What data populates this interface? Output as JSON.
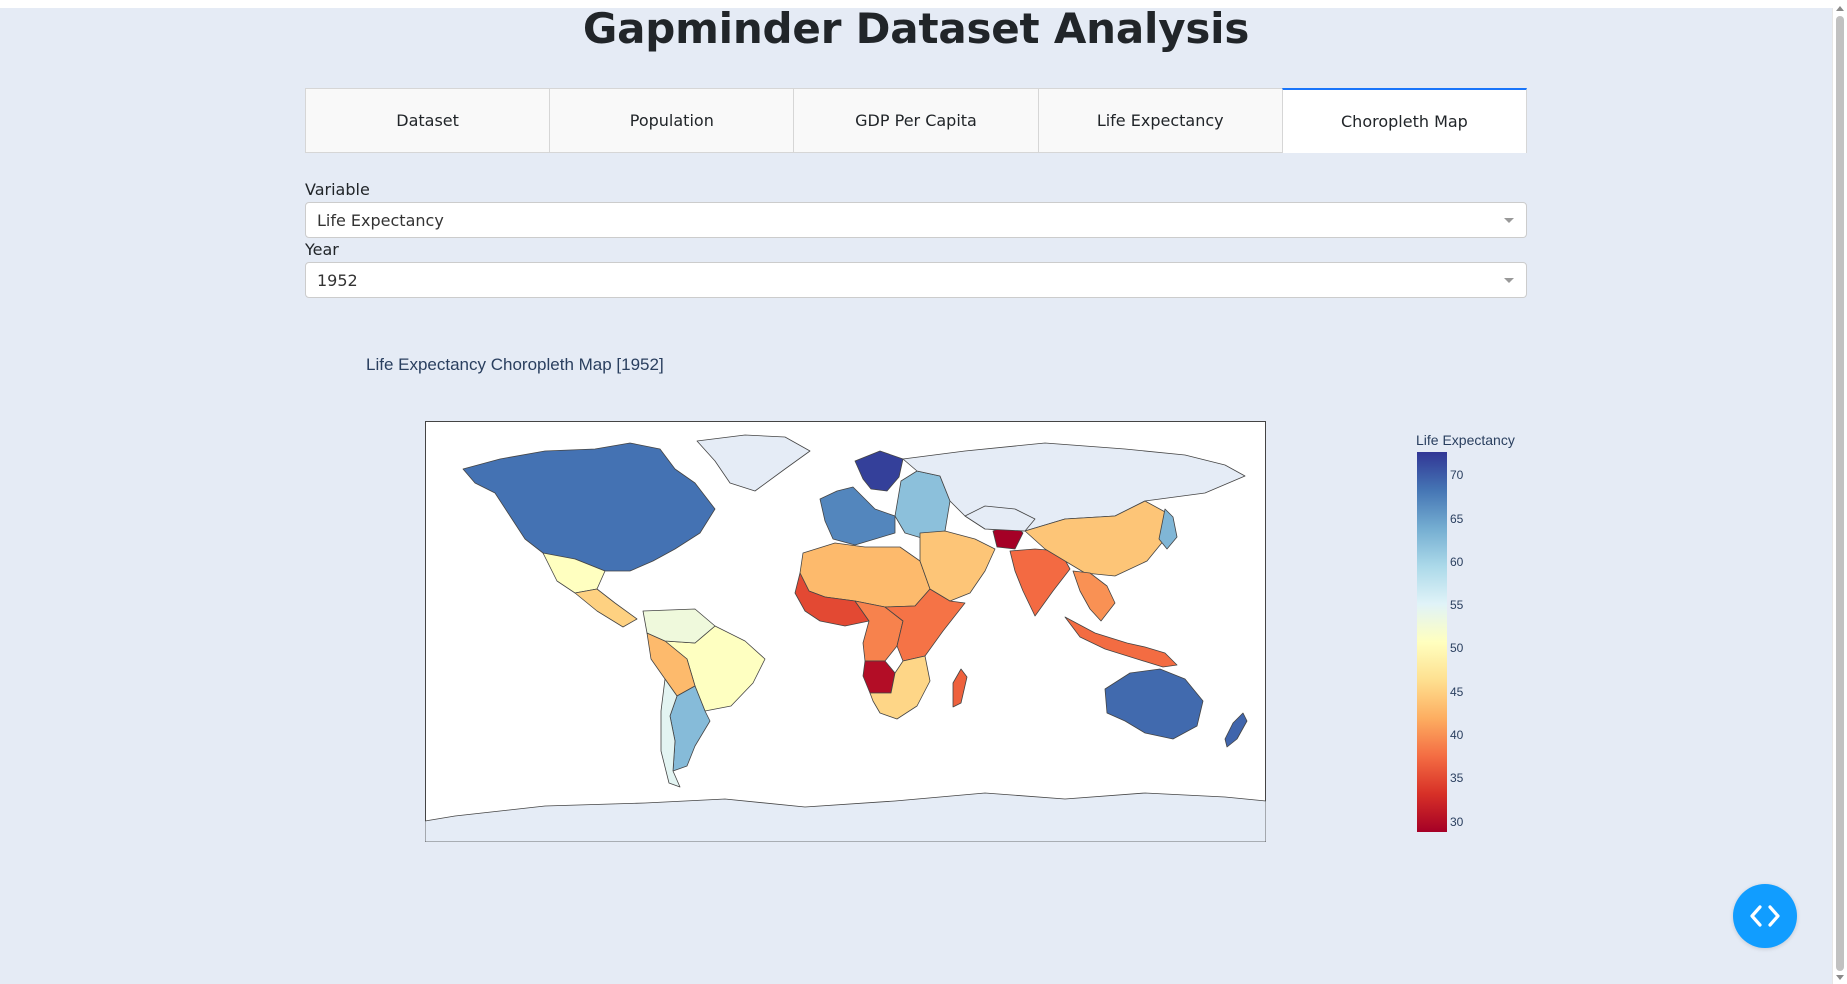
{
  "page": {
    "title": "Gapminder Dataset Analysis"
  },
  "tabs": [
    {
      "label": "Dataset"
    },
    {
      "label": "Population"
    },
    {
      "label": "GDP Per Capita"
    },
    {
      "label": "Life Expectancy"
    },
    {
      "label": "Choropleth Map",
      "active": true
    }
  ],
  "controls": {
    "variable": {
      "label": "Variable",
      "value": "Life Expectancy"
    },
    "year": {
      "label": "Year",
      "value": "1952"
    }
  },
  "chart_data": {
    "type": "choropleth",
    "title": "Life Expectancy Choropleth Map [1952]",
    "colorbar": {
      "title": "Life Expectancy",
      "ticks": [
        70,
        65,
        60,
        55,
        50,
        45,
        40,
        35,
        30
      ],
      "range": [
        28.8,
        72.7
      ],
      "colorscale": [
        "#313695",
        "#4575b4",
        "#74add1",
        "#abd9e9",
        "#e0f3f8",
        "#ffffbf",
        "#fee090",
        "#fdae61",
        "#f46d43",
        "#d73027",
        "#a50026"
      ]
    },
    "no_data_color": "#e5ecf6",
    "regions": [
      {
        "name": "Canada / USA",
        "value": 68.5
      },
      {
        "name": "Greenland",
        "value": null
      },
      {
        "name": "Mexico",
        "value": 50.8
      },
      {
        "name": "Central America",
        "value": 45
      },
      {
        "name": "Brazil",
        "value": 50.9
      },
      {
        "name": "Peru / Bolivia",
        "value": 43
      },
      {
        "name": "Colombia / Venezuela",
        "value": 53
      },
      {
        "name": "Argentina",
        "value": 62.5
      },
      {
        "name": "Chile",
        "value": 54.7
      },
      {
        "name": "Western Europe",
        "value": 67
      },
      {
        "name": "Scandinavia",
        "value": 72
      },
      {
        "name": "Eastern Europe",
        "value": 62
      },
      {
        "name": "Russia",
        "value": null
      },
      {
        "name": "North Africa",
        "value": 43
      },
      {
        "name": "West Africa",
        "value": 35
      },
      {
        "name": "Central Africa",
        "value": 39
      },
      {
        "name": "East Africa",
        "value": 38
      },
      {
        "name": "Angola",
        "value": 30
      },
      {
        "name": "Southern Africa",
        "value": 45.5
      },
      {
        "name": "Madagascar",
        "value": 36.7
      },
      {
        "name": "Middle East",
        "value": 44
      },
      {
        "name": "Afghanistan",
        "value": 28.8
      },
      {
        "name": "Kazakhstan / Central Asia",
        "value": null
      },
      {
        "name": "India",
        "value": 37.4
      },
      {
        "name": "China",
        "value": 44
      },
      {
        "name": "Japan",
        "value": 63
      },
      {
        "name": "Southeast Asia",
        "value": 40
      },
      {
        "name": "Indonesia",
        "value": 37.5
      },
      {
        "name": "Australia",
        "value": 69.1
      },
      {
        "name": "New Zealand",
        "value": 69.4
      },
      {
        "name": "Antarctica",
        "value": null
      }
    ]
  }
}
